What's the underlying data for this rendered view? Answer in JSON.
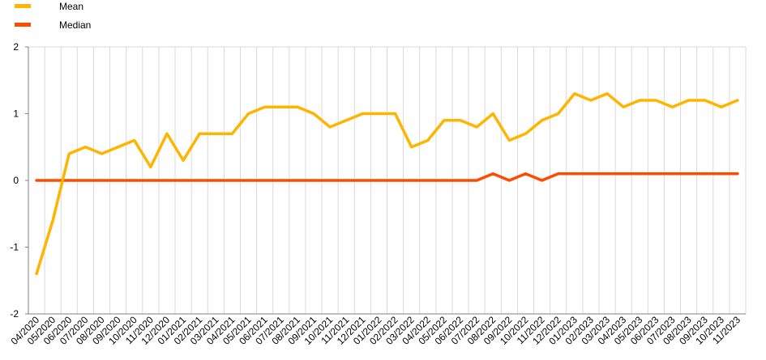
{
  "chart_data": {
    "type": "line",
    "categories": [
      "04/2020",
      "05/2020",
      "06/2020",
      "07/2020",
      "08/2020",
      "09/2020",
      "10/2020",
      "11/2020",
      "12/2020",
      "01/2021",
      "02/2021",
      "03/2021",
      "04/2021",
      "05/2021",
      "06/2021",
      "07/2021",
      "08/2021",
      "09/2021",
      "10/2021",
      "11/2021",
      "12/2021",
      "01/2022",
      "02/2022",
      "03/2022",
      "04/2022",
      "05/2022",
      "06/2022",
      "07/2022",
      "08/2022",
      "09/2022",
      "10/2022",
      "11/2022",
      "12/2022",
      "01/2023",
      "02/2023",
      "03/2023",
      "04/2023",
      "05/2023",
      "06/2023",
      "07/2023",
      "08/2023",
      "09/2023",
      "10/2023",
      "11/2023"
    ],
    "series": [
      {
        "name": "Mean",
        "color": "#FFB400",
        "values": [
          -1.4,
          -0.6,
          0.4,
          0.5,
          0.4,
          0.5,
          0.6,
          0.2,
          0.7,
          0.3,
          0.7,
          0.7,
          0.7,
          1.0,
          1.1,
          1.1,
          1.1,
          1.0,
          0.8,
          0.9,
          1.0,
          1.0,
          1.0,
          0.5,
          0.6,
          0.9,
          0.9,
          0.8,
          1.0,
          0.6,
          0.7,
          0.9,
          1.0,
          1.3,
          1.2,
          1.3,
          1.1,
          1.2,
          1.2,
          1.1,
          1.2,
          1.2,
          1.1,
          1.2
        ]
      },
      {
        "name": "Median",
        "color": "#FF4B00",
        "values": [
          0,
          0,
          0,
          0,
          0,
          0,
          0,
          0,
          0,
          0,
          0,
          0,
          0,
          0,
          0,
          0,
          0,
          0,
          0,
          0,
          0,
          0,
          0,
          0,
          0,
          0,
          0,
          0,
          0.1,
          0,
          0.1,
          0,
          0.1,
          0.1,
          0.1,
          0.1,
          0.1,
          0.1,
          0.1,
          0.1,
          0.1,
          0.1,
          0.1,
          0.1
        ]
      }
    ],
    "yticks": [
      "2",
      "1",
      "0",
      "-1",
      "-2"
    ],
    "ylim": [
      -2,
      2
    ],
    "grid": true,
    "legend": "top-left"
  }
}
